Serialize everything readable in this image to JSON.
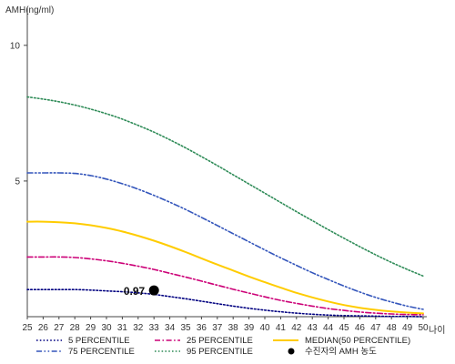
{
  "chart_data": {
    "type": "line",
    "ylabel": "AMH(ng/ml)",
    "xlabel": "나이",
    "ylim": [
      0,
      11
    ],
    "xlim": [
      25,
      50
    ],
    "yticks": [
      5,
      10
    ],
    "x": [
      25,
      26,
      27,
      28,
      29,
      30,
      31,
      32,
      33,
      34,
      35,
      36,
      37,
      38,
      39,
      40,
      41,
      42,
      43,
      44,
      45,
      46,
      47,
      48,
      49,
      50
    ],
    "series": [
      {
        "name": "5 PERCENTILE",
        "color": "#000080",
        "style": "dotted",
        "values": [
          1.0,
          1.0,
          1.0,
          1.0,
          0.98,
          0.95,
          0.92,
          0.88,
          0.82,
          0.74,
          0.66,
          0.57,
          0.48,
          0.39,
          0.31,
          0.24,
          0.18,
          0.13,
          0.09,
          0.06,
          0.04,
          0.03,
          0.02,
          0.01,
          0.01,
          0.0
        ]
      },
      {
        "name": "25 PERCENTILE",
        "color": "#cc0077",
        "style": "dashdot",
        "values": [
          2.2,
          2.2,
          2.2,
          2.18,
          2.13,
          2.06,
          1.97,
          1.86,
          1.74,
          1.6,
          1.46,
          1.31,
          1.16,
          1.01,
          0.87,
          0.73,
          0.6,
          0.49,
          0.39,
          0.3,
          0.23,
          0.17,
          0.13,
          0.1,
          0.08,
          0.07
        ]
      },
      {
        "name": "MEDIAN(50 PERCENTILE)",
        "color": "#ffcc00",
        "style": "solid",
        "values": [
          3.5,
          3.5,
          3.48,
          3.44,
          3.37,
          3.27,
          3.14,
          2.98,
          2.8,
          2.6,
          2.38,
          2.15,
          1.92,
          1.7,
          1.48,
          1.27,
          1.07,
          0.88,
          0.71,
          0.56,
          0.43,
          0.33,
          0.25,
          0.19,
          0.15,
          0.12
        ]
      },
      {
        "name": "75 PERCENTILE",
        "color": "#3355bb",
        "style": "dashdotdot",
        "values": [
          5.3,
          5.3,
          5.3,
          5.28,
          5.2,
          5.07,
          4.9,
          4.7,
          4.47,
          4.22,
          3.95,
          3.66,
          3.36,
          3.06,
          2.76,
          2.46,
          2.17,
          1.89,
          1.62,
          1.37,
          1.13,
          0.91,
          0.71,
          0.54,
          0.39,
          0.27
        ]
      },
      {
        "name": "95 PERCENTILE",
        "color": "#2e8b57",
        "style": "dotted",
        "values": [
          8.1,
          8.02,
          7.92,
          7.8,
          7.65,
          7.48,
          7.28,
          7.05,
          6.8,
          6.52,
          6.22,
          5.9,
          5.57,
          5.23,
          4.89,
          4.55,
          4.21,
          3.87,
          3.54,
          3.21,
          2.89,
          2.58,
          2.28,
          2.0,
          1.74,
          1.5
        ]
      }
    ],
    "marker": {
      "name": "수진자의 AMH 농도",
      "x": 33,
      "y": 0.97,
      "label": "0.97",
      "color": "#000000"
    },
    "legend": {
      "placement": "bottom",
      "entries": [
        {
          "label": "5 PERCENTILE",
          "series": 0
        },
        {
          "label": "25 PERCENTILE",
          "series": 1
        },
        {
          "label": "MEDIAN(50 PERCENTILE)",
          "series": 2
        },
        {
          "label": "75 PERCENTILE",
          "series": 3
        },
        {
          "label": "95 PERCENTILE",
          "series": 4
        },
        {
          "label": "수진자의 AMH 농도",
          "series": "marker"
        }
      ]
    }
  }
}
